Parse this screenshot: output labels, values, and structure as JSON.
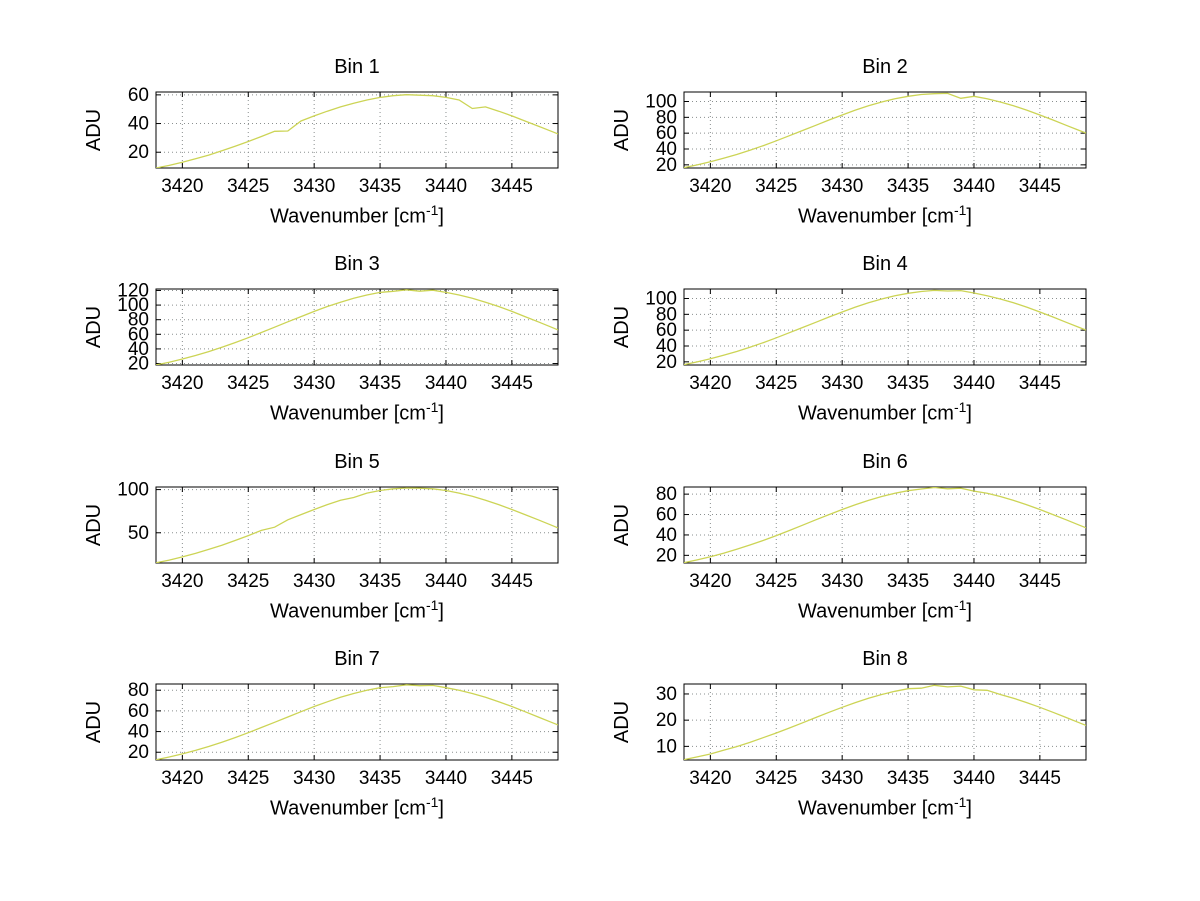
{
  "page": {
    "background": "#ffffff"
  },
  "labels": {
    "ylabel": "ADU",
    "xlabel_prefix": "Wavenumber [cm",
    "xlabel_sup": "-1",
    "xlabel_suffix": "]"
  },
  "chart_data": [
    {
      "type": "line",
      "title": "Bin 1",
      "xlabel": "Wavenumber [cm^-1]",
      "ylabel": "ADU",
      "grid": true,
      "line_color": "#ccd455",
      "xlim": [
        3418,
        3448.5
      ],
      "ylim": [
        9,
        62
      ],
      "xticks": [
        3420,
        3425,
        3430,
        3435,
        3440,
        3445
      ],
      "yticks": [
        20,
        40,
        60
      ],
      "x": [
        3418,
        3419,
        3420,
        3421,
        3422,
        3423,
        3424,
        3425,
        3426,
        3427,
        3428,
        3429,
        3430,
        3431,
        3432,
        3433,
        3434,
        3435,
        3436,
        3437,
        3438,
        3439,
        3440,
        3441,
        3442,
        3443,
        3444,
        3445,
        3446,
        3447,
        3448,
        3448.5
      ],
      "y": [
        9.0,
        10.8,
        13.0,
        15.4,
        18.0,
        21.0,
        24.1,
        27.5,
        31.0,
        34.6,
        34.8,
        41.8,
        45.3,
        48.6,
        51.6,
        54.2,
        56.4,
        58.2,
        59.4,
        60.1,
        59.8,
        59.4,
        58.2,
        56.4,
        50.5,
        51.6,
        48.6,
        45.3,
        41.8,
        38.2,
        34.6,
        32.8
      ]
    },
    {
      "type": "line",
      "title": "Bin 2",
      "xlabel": "Wavenumber [cm^-1]",
      "ylabel": "ADU",
      "grid": true,
      "line_color": "#ccd455",
      "xlim": [
        3418,
        3448.5
      ],
      "ylim": [
        16,
        112
      ],
      "xticks": [
        3420,
        3425,
        3430,
        3435,
        3440,
        3445
      ],
      "yticks": [
        20,
        40,
        60,
        80,
        100
      ],
      "x": [
        3418,
        3419,
        3420,
        3421,
        3422,
        3423,
        3424,
        3425,
        3426,
        3427,
        3428,
        3429,
        3430,
        3431,
        3432,
        3433,
        3434,
        3435,
        3436,
        3437,
        3438,
        3439,
        3440,
        3441,
        3442,
        3443,
        3444,
        3445,
        3446,
        3447,
        3448,
        3448.5
      ],
      "y": [
        16.4,
        19.9,
        23.8,
        28.2,
        33.1,
        38.4,
        44.2,
        50.4,
        56.8,
        63.4,
        70.0,
        76.6,
        83.0,
        89.1,
        94.6,
        99.4,
        103.5,
        106.6,
        108.8,
        109.9,
        110.2,
        104.0,
        106.6,
        103.5,
        99.4,
        94.6,
        89.1,
        83.0,
        76.6,
        70.0,
        63.4,
        60.1
      ]
    },
    {
      "type": "line",
      "title": "Bin 3",
      "xlabel": "Wavenumber [cm^-1]",
      "ylabel": "ADU",
      "grid": true,
      "line_color": "#ccd455",
      "xlim": [
        3418,
        3448.5
      ],
      "ylim": [
        18,
        122
      ],
      "xticks": [
        3420,
        3425,
        3430,
        3435,
        3440,
        3445
      ],
      "yticks": [
        20,
        40,
        60,
        80,
        100,
        120
      ],
      "x": [
        3418,
        3419,
        3420,
        3421,
        3422,
        3423,
        3424,
        3425,
        3426,
        3427,
        3428,
        3429,
        3430,
        3431,
        3432,
        3433,
        3434,
        3435,
        3436,
        3437,
        3438,
        3439,
        3440,
        3441,
        3442,
        3443,
        3444,
        3445,
        3446,
        3447,
        3448,
        3448.5
      ],
      "y": [
        18.1,
        21.9,
        26.2,
        31.0,
        36.4,
        42.3,
        48.6,
        55.4,
        62.5,
        69.7,
        77.1,
        84.3,
        91.3,
        98.0,
        104.0,
        109.3,
        113.8,
        117.3,
        118.8,
        120.9,
        119.0,
        120.3,
        117.3,
        113.8,
        109.3,
        104.0,
        98.0,
        91.3,
        84.3,
        77.1,
        69.7,
        66.1
      ]
    },
    {
      "type": "line",
      "title": "Bin 4",
      "xlabel": "Wavenumber [cm^-1]",
      "ylabel": "ADU",
      "grid": true,
      "line_color": "#ccd455",
      "xlim": [
        3418,
        3448.5
      ],
      "ylim": [
        16,
        112
      ],
      "xticks": [
        3420,
        3425,
        3430,
        3435,
        3440,
        3445
      ],
      "yticks": [
        20,
        40,
        60,
        80,
        100
      ],
      "x": [
        3418,
        3419,
        3420,
        3421,
        3422,
        3423,
        3424,
        3425,
        3426,
        3427,
        3428,
        3429,
        3430,
        3431,
        3432,
        3433,
        3434,
        3435,
        3436,
        3437,
        3438,
        3439,
        3440,
        3441,
        3442,
        3443,
        3444,
        3445,
        3446,
        3447,
        3448,
        3448.5
      ],
      "y": [
        16.4,
        19.9,
        23.8,
        28.2,
        33.1,
        38.4,
        44.2,
        50.4,
        56.8,
        63.4,
        70.0,
        76.6,
        83.0,
        89.1,
        94.6,
        99.4,
        103.5,
        106.6,
        108.8,
        110.2,
        109.5,
        110.0,
        106.9,
        103.5,
        99.4,
        94.6,
        89.1,
        83.0,
        76.6,
        70.0,
        63.4,
        60.1
      ]
    },
    {
      "type": "line",
      "title": "Bin 5",
      "xlabel": "Wavenumber [cm^-1]",
      "ylabel": "ADU",
      "grid": true,
      "line_color": "#ccd455",
      "xlim": [
        3418,
        3448.5
      ],
      "ylim": [
        15,
        103
      ],
      "xticks": [
        3420,
        3425,
        3430,
        3435,
        3440,
        3445
      ],
      "yticks": [
        50,
        100
      ],
      "x": [
        3418,
        3419,
        3420,
        3421,
        3422,
        3423,
        3424,
        3425,
        3426,
        3427,
        3428,
        3429,
        3430,
        3431,
        3432,
        3433,
        3434,
        3435,
        3436,
        3437,
        3438,
        3439,
        3440,
        3441,
        3442,
        3443,
        3444,
        3445,
        3446,
        3447,
        3448,
        3448.5
      ],
      "y": [
        15.2,
        18.4,
        22.1,
        26.1,
        30.7,
        35.6,
        41.0,
        46.7,
        52.7,
        56.5,
        65.0,
        71.1,
        77.0,
        82.6,
        87.7,
        90.8,
        95.9,
        98.9,
        100.9,
        101.9,
        101.6,
        100.9,
        98.9,
        95.9,
        92.2,
        87.7,
        82.6,
        77.0,
        71.1,
        65.0,
        58.8,
        55.7
      ]
    },
    {
      "type": "line",
      "title": "Bin 6",
      "xlabel": "Wavenumber [cm^-1]",
      "ylabel": "ADU",
      "grid": true,
      "line_color": "#ccd455",
      "xlim": [
        3418,
        3448.5
      ],
      "ylim": [
        12.5,
        87
      ],
      "xticks": [
        3420,
        3425,
        3430,
        3435,
        3440,
        3445
      ],
      "yticks": [
        20,
        40,
        60,
        80
      ],
      "x": [
        3418,
        3419,
        3420,
        3421,
        3422,
        3423,
        3424,
        3425,
        3426,
        3427,
        3428,
        3429,
        3430,
        3431,
        3432,
        3433,
        3434,
        3435,
        3436,
        3437,
        3438,
        3439,
        3440,
        3441,
        3442,
        3443,
        3444,
        3445,
        3446,
        3447,
        3448,
        3448.5
      ],
      "y": [
        12.8,
        15.5,
        18.6,
        22.0,
        25.9,
        30.1,
        34.6,
        39.4,
        44.4,
        49.6,
        54.8,
        59.9,
        64.9,
        69.6,
        73.9,
        77.7,
        80.9,
        83.4,
        85.0,
        86.5,
        85.2,
        85.8,
        83.0,
        80.9,
        77.7,
        73.9,
        69.6,
        64.9,
        59.9,
        54.8,
        49.6,
        47.0
      ]
    },
    {
      "type": "line",
      "title": "Bin 7",
      "xlabel": "Wavenumber [cm^-1]",
      "ylabel": "ADU",
      "grid": true,
      "line_color": "#ccd455",
      "xlim": [
        3418,
        3448.5
      ],
      "ylim": [
        12.5,
        86
      ],
      "xticks": [
        3420,
        3425,
        3430,
        3435,
        3440,
        3445
      ],
      "yticks": [
        20,
        40,
        60,
        80
      ],
      "x": [
        3418,
        3419,
        3420,
        3421,
        3422,
        3423,
        3424,
        3425,
        3426,
        3427,
        3428,
        3429,
        3430,
        3431,
        3432,
        3433,
        3434,
        3435,
        3436,
        3437,
        3438,
        3439,
        3440,
        3441,
        3442,
        3443,
        3444,
        3445,
        3446,
        3447,
        3448,
        3448.5
      ],
      "y": [
        12.7,
        15.4,
        18.4,
        21.8,
        25.6,
        29.7,
        34.2,
        38.9,
        43.9,
        49.0,
        54.1,
        59.2,
        64.2,
        68.8,
        73.1,
        76.8,
        80.0,
        82.4,
        83.5,
        85.2,
        84.4,
        84.6,
        82.4,
        80.0,
        76.8,
        73.1,
        68.8,
        64.2,
        59.2,
        54.1,
        49.0,
        46.4
      ]
    },
    {
      "type": "line",
      "title": "Bin 8",
      "xlabel": "Wavenumber [cm^-1]",
      "ylabel": "ADU",
      "grid": true,
      "line_color": "#ccd455",
      "xlim": [
        3418,
        3448.5
      ],
      "ylim": [
        4.8,
        33.8
      ],
      "xticks": [
        3420,
        3425,
        3430,
        3435,
        3440,
        3445
      ],
      "yticks": [
        10,
        20,
        30
      ],
      "x": [
        3418,
        3419,
        3420,
        3421,
        3422,
        3423,
        3424,
        3425,
        3426,
        3427,
        3428,
        3429,
        3430,
        3431,
        3432,
        3433,
        3434,
        3435,
        3436,
        3437,
        3438,
        3439,
        3440,
        3441,
        3442,
        3443,
        3444,
        3445,
        3446,
        3447,
        3448,
        3448.5
      ],
      "y": [
        4.9,
        6.0,
        7.1,
        8.5,
        9.9,
        11.5,
        13.3,
        15.1,
        17.0,
        19.0,
        21.0,
        23.0,
        24.9,
        26.7,
        28.4,
        29.8,
        31.0,
        32.0,
        32.2,
        33.3,
        32.7,
        33.0,
        31.6,
        31.4,
        29.8,
        28.4,
        26.7,
        24.9,
        23.0,
        21.0,
        19.0,
        18.0
      ]
    }
  ]
}
